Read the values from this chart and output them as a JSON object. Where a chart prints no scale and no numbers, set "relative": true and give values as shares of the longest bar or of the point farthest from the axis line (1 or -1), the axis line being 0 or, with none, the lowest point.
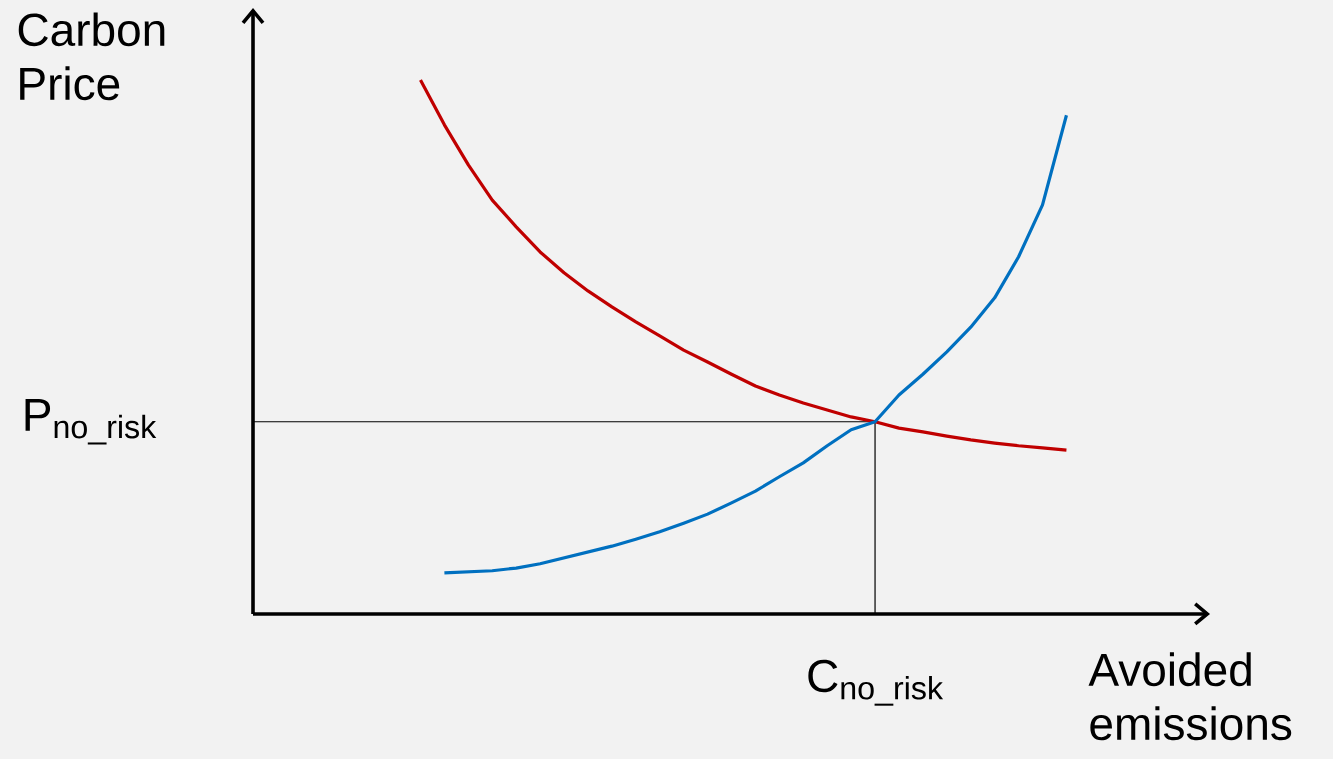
{
  "chart_data": {
    "type": "line",
    "relative": true,
    "xlabel": "Avoided emissions",
    "ylabel": "Carbon Price",
    "categories": [
      null,
      null,
      null,
      null,
      null,
      null,
      null,
      null,
      null,
      null,
      null,
      null,
      null,
      null,
      null,
      null,
      null,
      null,
      null,
      null,
      null,
      null,
      null,
      null,
      null,
      null,
      null,
      null,
      null,
      null,
      null,
      null,
      null,
      null,
      null,
      null,
      null,
      null,
      null,
      null,
      null
    ],
    "series": [
      {
        "color": "#c00000",
        "values": [
          null,
          null,
          null,
          null,
          null,
          null,
          null,
          1.0,
          0.916,
          0.841,
          0.775,
          0.725,
          0.678,
          0.639,
          0.605,
          0.575,
          0.547,
          0.521,
          0.494,
          0.472,
          0.449,
          0.427,
          0.41,
          0.395,
          0.382,
          0.369,
          0.36,
          0.348,
          0.341,
          0.333,
          0.326,
          0.32,
          0.315,
          0.311,
          0.307,
          null,
          null,
          null,
          null,
          null,
          null
        ]
      },
      {
        "color": "#0070c0",
        "values": [
          null,
          null,
          null,
          null,
          null,
          null,
          null,
          null,
          0.077,
          0.079,
          0.081,
          0.086,
          0.094,
          0.105,
          0.116,
          0.127,
          0.14,
          0.154,
          0.17,
          0.187,
          0.208,
          0.23,
          0.257,
          0.283,
          0.315,
          0.345,
          0.36,
          0.41,
          0.449,
          0.491,
          0.537,
          0.592,
          0.669,
          0.766,
          0.934,
          null,
          null,
          null,
          null,
          null,
          null
        ]
      }
    ],
    "ref_lines": [
      {
        "axis": "y",
        "value": 0.36,
        "label": "P$_{no_risk}$",
        "color": "#000000"
      }
    ],
    "annotations": [
      "C$_{no_risk}$"
    ]
  }
}
